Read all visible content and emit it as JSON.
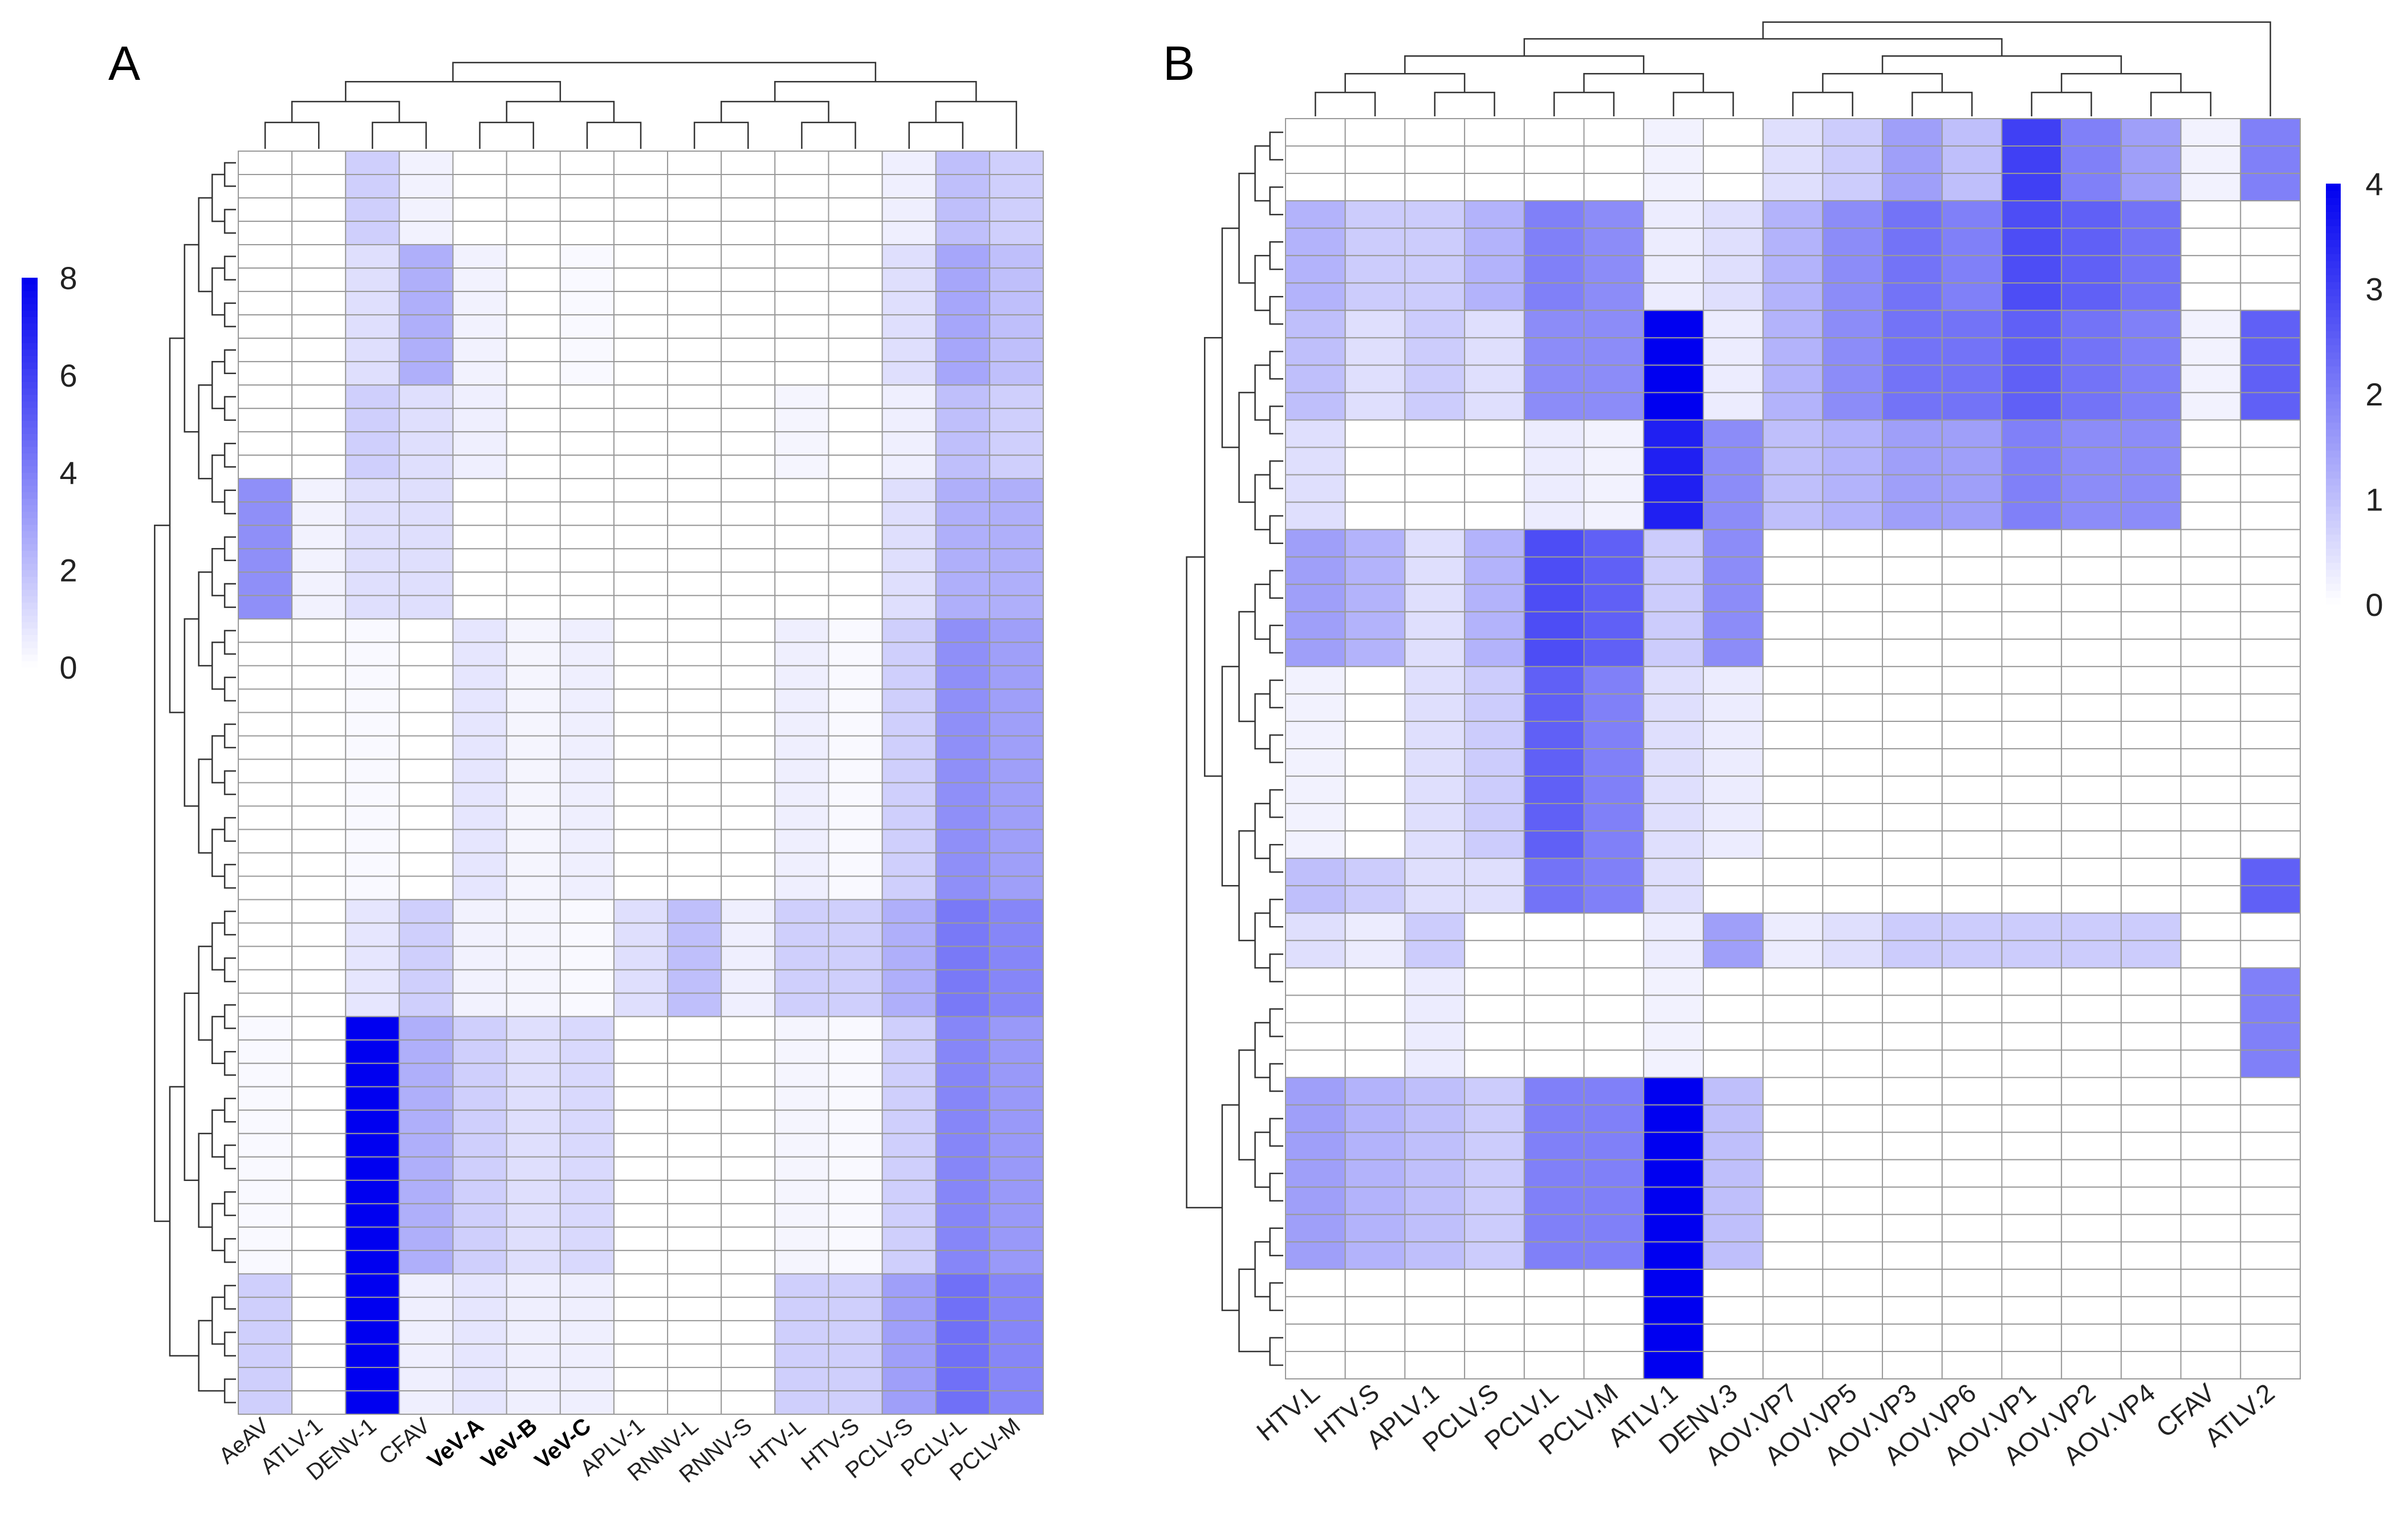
{
  "colors": {
    "low": "#ffffff",
    "high": "#0000f0",
    "grid": "#9a9a9a",
    "dendrogram": "#333333"
  },
  "chart_data": [
    {
      "type": "heatmap",
      "panel": "A",
      "columns": [
        "AeAV",
        "ATLV-1",
        "DENV-1",
        "CFAV",
        "VeV-A",
        "VeV-B",
        "VeV-C",
        "APLV-1",
        "RNNV-L",
        "RNNV-S",
        "HTV-L",
        "HTV-S",
        "PCLV-S",
        "PCLV-L",
        "PCLV-M"
      ],
      "bold_columns": [
        "VeV-A",
        "VeV-B",
        "VeV-C"
      ],
      "legend": {
        "min": 0,
        "max": 8,
        "ticks": [
          "0",
          "2",
          "4",
          "6",
          "8"
        ]
      },
      "row_groups": [
        {
          "count": 4,
          "values": [
            0,
            0,
            1.5,
            0.4,
            0,
            0,
            0,
            0,
            0,
            0,
            0,
            0,
            0.5,
            2,
            1.5
          ]
        },
        {
          "count": 6,
          "values": [
            0,
            0,
            1,
            2.5,
            0.4,
            0,
            0.2,
            0,
            0,
            0,
            0,
            0,
            1,
            2.8,
            2
          ]
        },
        {
          "count": 4,
          "values": [
            0,
            0,
            1.5,
            1,
            0.5,
            0,
            0,
            0,
            0,
            0,
            0.3,
            0,
            0.5,
            2,
            1.5
          ]
        },
        {
          "count": 6,
          "values": [
            3.5,
            0.4,
            1,
            1,
            0,
            0,
            0,
            0,
            0,
            0,
            0,
            0,
            1,
            2.5,
            2.5
          ]
        },
        {
          "count": 12,
          "values": [
            0,
            0,
            0.2,
            0,
            0.8,
            0.3,
            0.5,
            0,
            0,
            0,
            0.5,
            0.2,
            1.5,
            3.5,
            3
          ]
        },
        {
          "count": 5,
          "values": [
            0,
            0,
            0.8,
            1.5,
            0.4,
            0.3,
            0.2,
            1,
            2,
            0.5,
            1.5,
            1.5,
            2.5,
            4.2,
            3.8
          ]
        },
        {
          "count": 11,
          "values": [
            0.2,
            0,
            8,
            2.5,
            1.5,
            1,
            1.2,
            0,
            0,
            0,
            0.3,
            0.2,
            1.5,
            3.8,
            3.2
          ]
        },
        {
          "count": 6,
          "values": [
            1.5,
            0,
            8,
            0.5,
            0.8,
            0.5,
            0.5,
            0,
            0,
            0,
            1.5,
            1.5,
            3,
            4.5,
            3.8
          ]
        }
      ]
    },
    {
      "type": "heatmap",
      "panel": "B",
      "columns": [
        "HTV.L",
        "HTV.S",
        "APLV.1",
        "PCLV.S",
        "PCLV.L",
        "PCLV.M",
        "ATLV.1",
        "DENV.3",
        "AOV.VP7",
        "AOV.VP5",
        "AOV.VP3",
        "AOV.VP6",
        "AOV.VP1",
        "AOV.VP2",
        "AOV.VP4",
        "CFAV",
        "ATLV.2"
      ],
      "legend": {
        "min": 0,
        "max": 4,
        "ticks": [
          "0",
          "1",
          "2",
          "3",
          "4"
        ]
      },
      "row_groups": [
        {
          "count": 3,
          "values": [
            0,
            0,
            0,
            0,
            0,
            0,
            0.2,
            0,
            0.5,
            0.8,
            1.5,
            1,
            3,
            2,
            1.5,
            0.2,
            2
          ]
        },
        {
          "count": 4,
          "values": [
            1.2,
            0.8,
            0.8,
            1.2,
            2,
            1.8,
            0.3,
            0.5,
            1.2,
            1.8,
            2.2,
            2,
            2.8,
            2.5,
            2.2,
            0,
            0
          ]
        },
        {
          "count": 4,
          "values": [
            1,
            0.5,
            0.8,
            0.5,
            1.8,
            1.8,
            4,
            0.3,
            1.2,
            1.8,
            2.2,
            2.2,
            2.5,
            2.2,
            2,
            0.2,
            2.5
          ]
        },
        {
          "count": 4,
          "values": [
            0.5,
            0,
            0,
            0,
            0.3,
            0.2,
            3.5,
            1.8,
            1,
            1.2,
            1.5,
            1.5,
            2,
            1.8,
            1.8,
            0,
            0
          ]
        },
        {
          "count": 5,
          "values": [
            1.5,
            1.2,
            0.5,
            1.2,
            2.8,
            2.5,
            0.8,
            1.8,
            0,
            0,
            0,
            0,
            0,
            0,
            0,
            0,
            0
          ]
        },
        {
          "count": 7,
          "values": [
            0.2,
            0,
            0.5,
            0.8,
            2.5,
            2,
            0.5,
            0.3,
            0,
            0,
            0,
            0,
            0,
            0,
            0,
            0,
            0
          ]
        },
        {
          "count": 2,
          "values": [
            1,
            0.8,
            0.5,
            0.5,
            2.2,
            2,
            0.5,
            0,
            0,
            0,
            0,
            0,
            0,
            0,
            0,
            0,
            2.5
          ]
        },
        {
          "count": 2,
          "values": [
            0.5,
            0.3,
            0.8,
            0,
            0,
            0,
            0.3,
            1.5,
            0.3,
            0.5,
            0.8,
            0.8,
            0.8,
            0.8,
            0.8,
            0,
            0
          ]
        },
        {
          "count": 4,
          "values": [
            0,
            0,
            0.3,
            0,
            0,
            0,
            0.2,
            0,
            0,
            0,
            0,
            0,
            0,
            0,
            0,
            0,
            2
          ]
        },
        {
          "count": 7,
          "values": [
            1.5,
            1.2,
            1,
            0.8,
            2,
            2,
            4,
            1,
            0,
            0,
            0,
            0,
            0,
            0,
            0,
            0,
            0
          ]
        },
        {
          "count": 4,
          "values": [
            0,
            0,
            0,
            0,
            0,
            0,
            4,
            0,
            0,
            0,
            0,
            0,
            0,
            0,
            0,
            0,
            0
          ]
        }
      ]
    }
  ]
}
